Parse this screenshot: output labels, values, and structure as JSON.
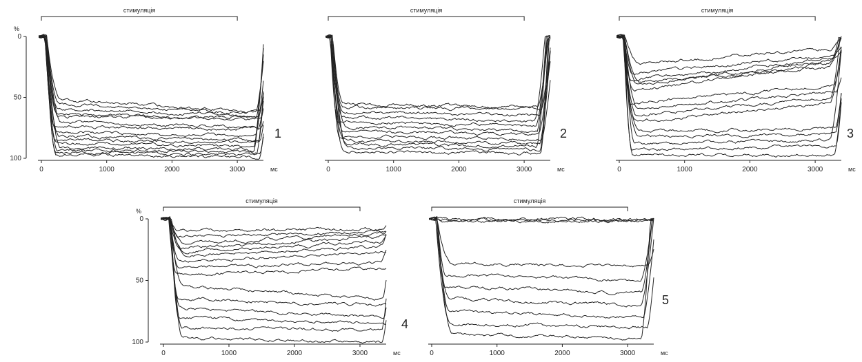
{
  "stimulus_label": "стимуляція",
  "chart_data": [
    {
      "type": "line",
      "panel_label": "1",
      "x_unit_label": "мс",
      "y_unit_label": "%",
      "xlim": [
        0,
        3400
      ],
      "ylim": [
        0,
        100
      ],
      "x_ticks": [
        0,
        1000,
        2000,
        3000
      ],
      "y_ticks": [
        0,
        50,
        100
      ],
      "stimulus": [
        0,
        3000
      ],
      "onset": 50,
      "offset": 3250,
      "curves": [
        {
          "d1": 52,
          "d2": 62
        },
        {
          "d1": 56,
          "d2": 63
        },
        {
          "d1": 60,
          "d2": 65
        },
        {
          "d1": 63,
          "d2": 68
        },
        {
          "d1": 66,
          "d2": 66
        },
        {
          "d1": 70,
          "d2": 75
        },
        {
          "d1": 74,
          "d2": 76
        },
        {
          "d1": 78,
          "d2": 82
        },
        {
          "d1": 82,
          "d2": 85
        },
        {
          "d1": 85,
          "d2": 87
        },
        {
          "d1": 88,
          "d2": 90
        },
        {
          "d1": 91,
          "d2": 93
        },
        {
          "d1": 93,
          "d2": 95
        },
        {
          "d1": 95,
          "d2": 97
        },
        {
          "d1": 97,
          "d2": 99
        }
      ]
    },
    {
      "type": "line",
      "panel_label": "2",
      "x_unit_label": "мс",
      "y_unit_label": "",
      "xlim": [
        0,
        3400
      ],
      "ylim": [
        0,
        100
      ],
      "x_ticks": [
        0,
        1000,
        2000,
        3000
      ],
      "y_ticks": [],
      "stimulus": [
        0,
        3000
      ],
      "onset": 30,
      "offset": 3150,
      "curves": [
        {
          "d1": 55,
          "d2": 58
        },
        {
          "d1": 58,
          "d2": 60
        },
        {
          "d1": 62,
          "d2": 65
        },
        {
          "d1": 66,
          "d2": 70
        },
        {
          "d1": 70,
          "d2": 73
        },
        {
          "d1": 74,
          "d2": 77
        },
        {
          "d1": 78,
          "d2": 80
        },
        {
          "d1": 82,
          "d2": 84
        },
        {
          "d1": 85,
          "d2": 88
        },
        {
          "d1": 88,
          "d2": 90
        },
        {
          "d1": 91,
          "d2": 93
        },
        {
          "d1": 94,
          "d2": 96
        }
      ]
    },
    {
      "type": "line",
      "panel_label": "3",
      "x_unit_label": "мс",
      "y_unit_label": "",
      "xlim": [
        0,
        3400
      ],
      "ylim": [
        0,
        100
      ],
      "x_ticks": [
        0,
        1000,
        2000,
        3000
      ],
      "y_ticks": [],
      "stimulus": [
        0,
        3000
      ],
      "onset": 50,
      "offset": 3200,
      "curves": [
        {
          "d1": 22,
          "d2": 10
        },
        {
          "d1": 30,
          "d2": 15
        },
        {
          "d1": 36,
          "d2": 18
        },
        {
          "d1": 40,
          "d2": 20
        },
        {
          "d1": 38,
          "d2": 25
        },
        {
          "d1": 45,
          "d2": 22
        },
        {
          "d1": 55,
          "d2": 40
        },
        {
          "d1": 60,
          "d2": 45
        },
        {
          "d1": 65,
          "d2": 50
        },
        {
          "d1": 70,
          "d2": 55
        },
        {
          "d1": 78,
          "d2": 75
        },
        {
          "d1": 82,
          "d2": 80
        },
        {
          "d1": 88,
          "d2": 85
        },
        {
          "d1": 93,
          "d2": 90
        },
        {
          "d1": 97,
          "d2": 98
        }
      ]
    },
    {
      "type": "line",
      "panel_label": "4",
      "x_unit_label": "мс",
      "y_unit_label": "%",
      "xlim": [
        0,
        3400
      ],
      "ylim": [
        0,
        100
      ],
      "x_ticks": [
        0,
        1000,
        2000,
        3000
      ],
      "y_ticks": [
        0,
        50,
        100
      ],
      "stimulus": [
        0,
        3000
      ],
      "onset": 80,
      "offset": 3300,
      "curves": [
        {
          "d1": 10,
          "d2": 8
        },
        {
          "d1": 15,
          "d2": 10
        },
        {
          "d1": 20,
          "d2": 12
        },
        {
          "d1": 24,
          "d2": 14
        },
        {
          "d1": 27,
          "d2": 18
        },
        {
          "d1": 30,
          "d2": 22
        },
        {
          "d1": 35,
          "d2": 27
        },
        {
          "d1": 40,
          "d2": 35
        },
        {
          "d1": 45,
          "d2": 40
        },
        {
          "d1": 55,
          "d2": 65
        },
        {
          "d1": 65,
          "d2": 70
        },
        {
          "d1": 72,
          "d2": 80
        },
        {
          "d1": 80,
          "d2": 85
        },
        {
          "d1": 88,
          "d2": 90
        },
        {
          "d1": 97,
          "d2": 100
        }
      ]
    },
    {
      "type": "line",
      "panel_label": "5",
      "x_unit_label": "мс",
      "y_unit_label": "",
      "xlim": [
        0,
        3400
      ],
      "ylim": [
        0,
        100
      ],
      "x_ticks": [
        0,
        1000,
        2000,
        3000
      ],
      "y_ticks": [],
      "stimulus": [
        0,
        3000
      ],
      "onset": 60,
      "offset": 3200,
      "curves": [
        {
          "d1": 0,
          "d2": 0
        },
        {
          "d1": 1,
          "d2": 1
        },
        {
          "d1": 2,
          "d2": 2
        },
        {
          "d1": 36,
          "d2": 38
        },
        {
          "d1": 45,
          "d2": 50
        },
        {
          "d1": 55,
          "d2": 60
        },
        {
          "d1": 65,
          "d2": 70
        },
        {
          "d1": 75,
          "d2": 80
        },
        {
          "d1": 85,
          "d2": 88
        },
        {
          "d1": 93,
          "d2": 97
        }
      ]
    }
  ]
}
